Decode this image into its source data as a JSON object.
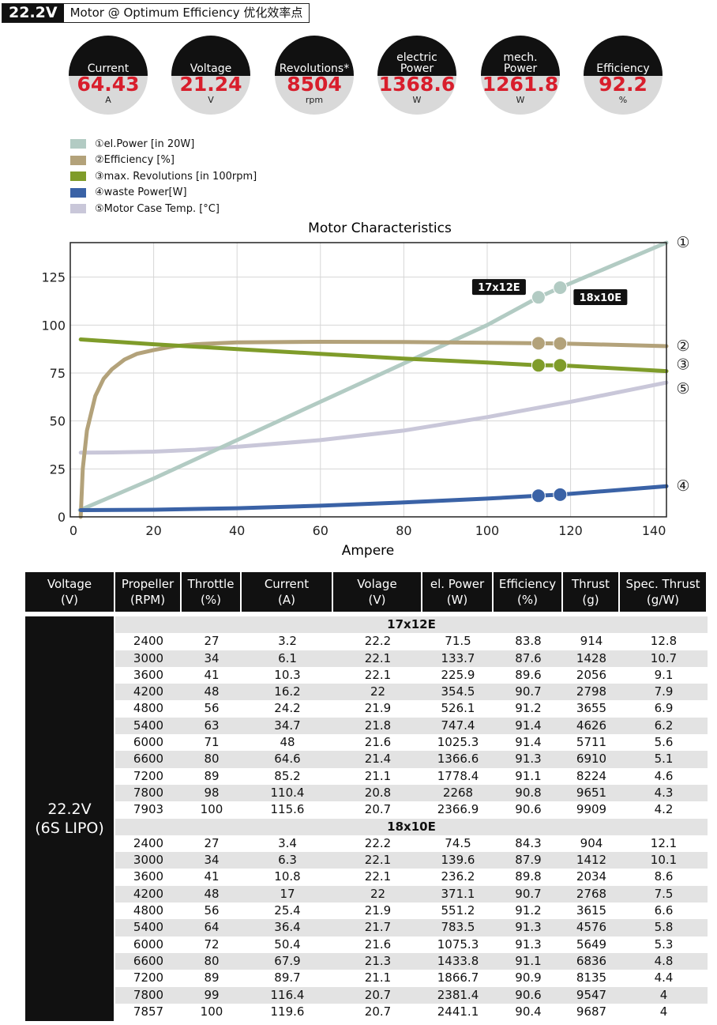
{
  "header": {
    "voltage": "22.2V",
    "title": "Motor @ Optimum Efficiency   优化效率点"
  },
  "gauges": [
    {
      "label": "Current",
      "value": "64.43",
      "unit": "A"
    },
    {
      "label": "Voltage",
      "value": "21.24",
      "unit": "V"
    },
    {
      "label": "Revolutions*",
      "value": "8504",
      "unit": "rpm"
    },
    {
      "label": "electric\nPower",
      "value": "1368.6",
      "unit": "W"
    },
    {
      "label": "mech.\nPower",
      "value": "1261.8",
      "unit": "W"
    },
    {
      "label": "Efficiency",
      "value": "92.2",
      "unit": "%"
    }
  ],
  "legend": [
    {
      "label": "①el.Power [in 20W]",
      "color": "#b2cbc3"
    },
    {
      "label": "②Efficiency [%]",
      "color": "#b3a27a"
    },
    {
      "label": "③max. Revolutions [in 100rpm]",
      "color": "#7f9c2a"
    },
    {
      "label": "④waste Power[W]",
      "color": "#3a62a6"
    },
    {
      "label": "⑤Motor Case Temp. [°C]",
      "color": "#c9c7d9"
    }
  ],
  "chart_data": {
    "type": "line",
    "title": "Motor Characteristics",
    "xlabel": "Ampere",
    "ylabel": "",
    "xlim": [
      0,
      143
    ],
    "ylim": [
      0,
      143
    ],
    "xticks": [
      0,
      20,
      40,
      60,
      80,
      100,
      120,
      140
    ],
    "yticks": [
      0,
      25,
      50,
      75,
      100,
      125
    ],
    "grid": true,
    "series": [
      {
        "name": "①",
        "color": "#b2cbc3",
        "x": [
          2.3,
          20,
          40,
          60,
          80,
          100,
          112.3,
          117.5,
          143
        ],
        "y": [
          3.5,
          20,
          40,
          60,
          80,
          100,
          114.5,
          119.5,
          143
        ]
      },
      {
        "name": "②",
        "color": "#b3a27a",
        "x": [
          2.5,
          3,
          4,
          6,
          8,
          10,
          13,
          16,
          20,
          25,
          30,
          40,
          60,
          80,
          100,
          112.3,
          117.5,
          143
        ],
        "y": [
          0,
          25,
          45,
          63,
          72,
          77,
          82,
          85,
          87,
          89,
          90,
          91,
          91.3,
          91.2,
          90.8,
          90.5,
          90.4,
          89
        ]
      },
      {
        "name": "③",
        "color": "#7f9c2a",
        "x": [
          2.5,
          20,
          40,
          60,
          80,
          100,
          112.3,
          117.5,
          143
        ],
        "y": [
          92.5,
          90,
          87.5,
          85,
          82.5,
          80.5,
          79,
          79,
          76
        ]
      },
      {
        "name": "④",
        "color": "#3a62a6",
        "x": [
          2.5,
          20,
          40,
          60,
          80,
          100,
          112.3,
          117.5,
          143
        ],
        "y": [
          3.5,
          3.7,
          4.5,
          5.8,
          7.5,
          9.5,
          11,
          11.6,
          16
        ]
      },
      {
        "name": "⑤",
        "color": "#c9c7d9",
        "x": [
          2.5,
          10,
          20,
          30,
          40,
          60,
          80,
          100,
          120,
          143
        ],
        "y": [
          33.5,
          33.6,
          34,
          35,
          36.5,
          40,
          45,
          52,
          60,
          70
        ]
      }
    ],
    "markers": [
      {
        "x": 112.3,
        "y": 114.5,
        "series": "①"
      },
      {
        "x": 117.5,
        "y": 119.5,
        "series": "①"
      },
      {
        "x": 112.3,
        "y": 90.5,
        "series": "②"
      },
      {
        "x": 117.5,
        "y": 90.4,
        "series": "②"
      },
      {
        "x": 112.3,
        "y": 79,
        "series": "③"
      },
      {
        "x": 117.5,
        "y": 79,
        "series": "③"
      },
      {
        "x": 112.3,
        "y": 11,
        "series": "④"
      },
      {
        "x": 117.5,
        "y": 11.6,
        "series": "④"
      }
    ],
    "annotations": [
      {
        "text": "17x12E",
        "x": 112.3,
        "y": 114.5
      },
      {
        "text": "18x10E",
        "x": 117.5,
        "y": 119.5
      }
    ],
    "end_labels": [
      {
        "text": "①",
        "y": 143
      },
      {
        "text": "②",
        "y": 89
      },
      {
        "text": "③",
        "y": 76
      },
      {
        "text": "⑤",
        "y": 70
      },
      {
        "text": "④",
        "y": 16
      }
    ]
  },
  "table": {
    "headers": [
      "Voltage\n(V)",
      "Propeller\n(RPM)",
      "Throttle\n(%)",
      "Current\n(A)",
      "Volage\n(V)",
      "el. Power\n(W)",
      "Efficiency\n(%)",
      "Thrust\n(g)",
      "Spec. Thrust\n(g/W)"
    ],
    "voltage_cell": "22.2V\n(6S LIPO)",
    "sections": [
      {
        "title": "17x12E",
        "rows": [
          [
            "2400",
            "27",
            "3.2",
            "22.2",
            "71.5",
            "83.8",
            "914",
            "12.8"
          ],
          [
            "3000",
            "34",
            "6.1",
            "22.1",
            "133.7",
            "87.6",
            "1428",
            "10.7"
          ],
          [
            "3600",
            "41",
            "10.3",
            "22.1",
            "225.9",
            "89.6",
            "2056",
            "9.1"
          ],
          [
            "4200",
            "48",
            "16.2",
            "22",
            "354.5",
            "90.7",
            "2798",
            "7.9"
          ],
          [
            "4800",
            "56",
            "24.2",
            "21.9",
            "526.1",
            "91.2",
            "3655",
            "6.9"
          ],
          [
            "5400",
            "63",
            "34.7",
            "21.8",
            "747.4",
            "91.4",
            "4626",
            "6.2"
          ],
          [
            "6000",
            "71",
            "48",
            "21.6",
            "1025.3",
            "91.4",
            "5711",
            "5.6"
          ],
          [
            "6600",
            "80",
            "64.6",
            "21.4",
            "1366.6",
            "91.3",
            "6910",
            "5.1"
          ],
          [
            "7200",
            "89",
            "85.2",
            "21.1",
            "1778.4",
            "91.1",
            "8224",
            "4.6"
          ],
          [
            "7800",
            "98",
            "110.4",
            "20.8",
            "2268",
            "90.8",
            "9651",
            "4.3"
          ],
          [
            "7903",
            "100",
            "115.6",
            "20.7",
            "2366.9",
            "90.6",
            "9909",
            "4.2"
          ]
        ]
      },
      {
        "title": "18x10E",
        "rows": [
          [
            "2400",
            "27",
            "3.4",
            "22.2",
            "74.5",
            "84.3",
            "904",
            "12.1"
          ],
          [
            "3000",
            "34",
            "6.3",
            "22.1",
            "139.6",
            "87.9",
            "1412",
            "10.1"
          ],
          [
            "3600",
            "41",
            "10.8",
            "22.1",
            "236.2",
            "89.8",
            "2034",
            "8.6"
          ],
          [
            "4200",
            "48",
            "17",
            "22",
            "371.1",
            "90.7",
            "2768",
            "7.5"
          ],
          [
            "4800",
            "56",
            "25.4",
            "21.9",
            "551.2",
            "91.2",
            "3615",
            "6.6"
          ],
          [
            "5400",
            "64",
            "36.4",
            "21.7",
            "783.5",
            "91.3",
            "4576",
            "5.8"
          ],
          [
            "6000",
            "72",
            "50.4",
            "21.6",
            "1075.3",
            "91.3",
            "5649",
            "5.3"
          ],
          [
            "6600",
            "80",
            "67.9",
            "21.3",
            "1433.8",
            "91.1",
            "6836",
            "4.8"
          ],
          [
            "7200",
            "89",
            "89.7",
            "21.1",
            "1866.7",
            "90.9",
            "8135",
            "4.4"
          ],
          [
            "7800",
            "99",
            "116.4",
            "20.7",
            "2381.4",
            "90.6",
            "9547",
            "4"
          ],
          [
            "7857",
            "100",
            "119.6",
            "20.7",
            "2441.1",
            "90.4",
            "9687",
            "4"
          ]
        ]
      }
    ]
  }
}
